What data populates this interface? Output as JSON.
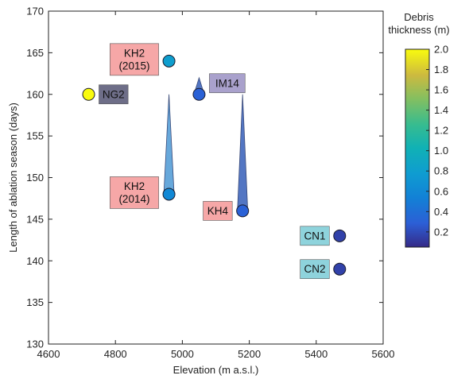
{
  "chart_data": {
    "type": "scatter",
    "xlabel": "Elevation (m a.s.l.)",
    "ylabel": "Length of ablation season (days)",
    "xlim": [
      4600,
      5600
    ],
    "ylim": [
      130,
      170
    ],
    "xticks": [
      4600,
      4800,
      5000,
      5200,
      5400,
      5600
    ],
    "yticks": [
      130,
      135,
      140,
      145,
      150,
      155,
      160,
      165,
      170
    ],
    "points": [
      {
        "label": "NG2",
        "x": 4720,
        "y": 160,
        "debris_thickness": 2.0,
        "label_color": "#6e6e88",
        "label_side": "right"
      },
      {
        "label": "KH2\n(2015)",
        "x": 4960,
        "y": 164,
        "debris_thickness": 0.8,
        "label_color": "#f6a7a7",
        "label_side": "left"
      },
      {
        "label": "KH2\n(2014)",
        "x": 4960,
        "y": 148,
        "debris_thickness": 0.6,
        "label_color": "#f6a7a7",
        "label_side": "left"
      },
      {
        "label": "IM14",
        "x": 5050,
        "y": 160,
        "debris_thickness": 0.3,
        "label_color": "#a9a1cc",
        "label_side": "right"
      },
      {
        "label": "KH4",
        "x": 5180,
        "y": 146,
        "debris_thickness": 0.3,
        "label_color": "#f6a7a7",
        "label_side": "left"
      },
      {
        "label": "CN1",
        "x": 5470,
        "y": 143,
        "debris_thickness": 0.15,
        "label_color": "#8ed3dc",
        "label_side": "left"
      },
      {
        "label": "CN2",
        "x": 5470,
        "y": 139,
        "debris_thickness": 0.15,
        "label_color": "#8ed3dc",
        "label_side": "left"
      }
    ],
    "range_wedges": [
      {
        "x": 4960,
        "y_from": 148,
        "y_to": 160,
        "color": "#5fa3d9"
      },
      {
        "x": 5180,
        "y_from": 146,
        "y_to": 160,
        "color": "#4a6fc0"
      },
      {
        "x": 5050,
        "y_from": 160,
        "y_to": 162,
        "color": "#4a6fc0"
      }
    ],
    "colorbar": {
      "title": "Debris\nthickness (m)",
      "min": 0.05,
      "max": 2.0,
      "ticks": [
        0.2,
        0.4,
        0.6,
        0.8,
        1.0,
        1.2,
        1.4,
        1.6,
        1.8,
        2.0
      ],
      "tick_labels": [
        "0.2",
        "0.4",
        "0.6",
        "0.8",
        "1.0",
        "1.2",
        "1.4",
        "1.6",
        "1.8",
        "2.0"
      ],
      "colormap": "parula"
    }
  }
}
